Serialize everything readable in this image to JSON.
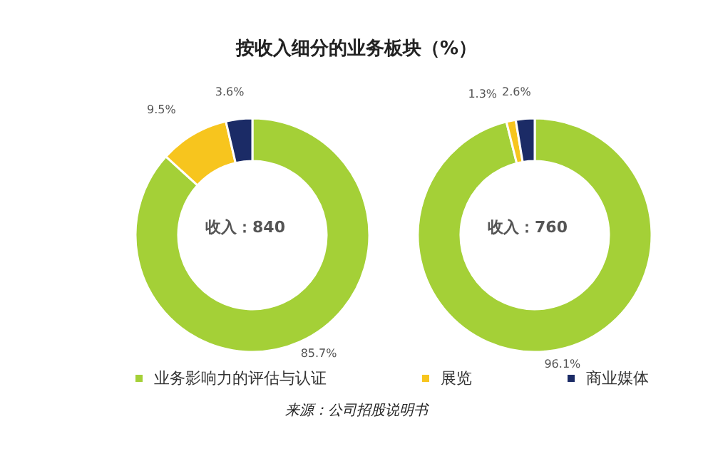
{
  "chart_data": [
    {
      "type": "donut",
      "title": "按收入细分的业务板块（%）",
      "categories": [
        "业务影响力的评估与认证",
        "展览",
        "商业媒体"
      ],
      "values": [
        85.7,
        9.5,
        3.6
      ],
      "colors": [
        "#a4d037",
        "#f7c51e",
        "#1b2b66"
      ],
      "value_labels": [
        "85.7%",
        "9.5%",
        "3.6%"
      ],
      "legend": "bottom",
      "annotations": [
        "收入：840"
      ]
    },
    {
      "type": "donut",
      "categories": [
        null,
        null,
        null
      ],
      "values": [
        96.1,
        1.3,
        2.6
      ],
      "colors": [
        "#a4d037",
        "#f7c51e",
        "#1b2b66"
      ],
      "value_labels": [
        "96.1%",
        "1.3%",
        "2.6%"
      ],
      "annotations": [
        "收入：760",
        "来源：公司招股说明书"
      ]
    }
  ]
}
